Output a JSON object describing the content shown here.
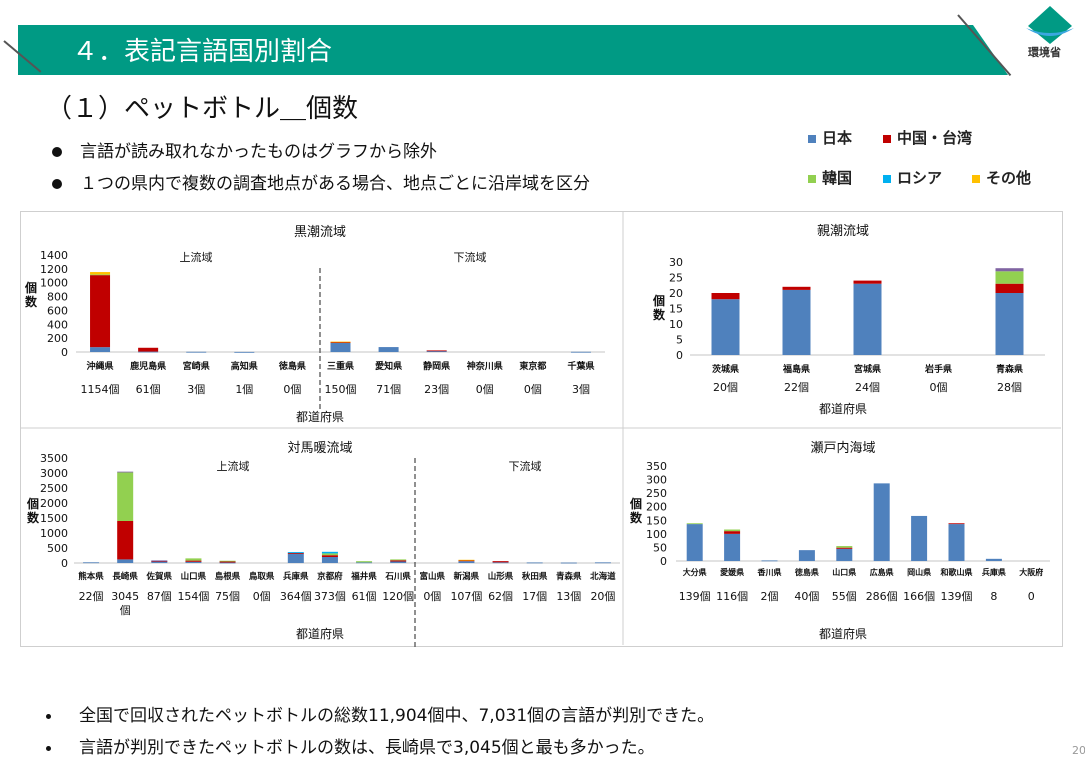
{
  "header": {
    "title": "４．表記言語国別割合",
    "logo_text": "環境省"
  },
  "subtitle": "（１）ペットボトル＿個数",
  "bullets": [
    "言語が読み取れなかったものはグラフから除外",
    "１つの県内で複数の調査地点がある場合、地点ごとに沿岸域を区分"
  ],
  "legend": [
    {
      "key": "japan",
      "label": "日本",
      "color": "#4F81BD"
    },
    {
      "key": "china",
      "label": "中国・台湾",
      "color": "#C00000"
    },
    {
      "key": "korea",
      "label": "韓国",
      "color": "#92D050"
    },
    {
      "key": "russia",
      "label": "ロシア",
      "color": "#00B0F0"
    },
    {
      "key": "other",
      "label": "その他",
      "color": "#FFC000"
    }
  ],
  "extra_color": "#8064A2",
  "chart_data": [
    {
      "type": "bar",
      "title": "黒潮流域",
      "ylabel": "個数",
      "xlabel": "都道府県",
      "ylim": [
        0,
        1400
      ],
      "ytick_step": 200,
      "regions": [
        "上流域",
        "下流域"
      ],
      "categories": [
        "沖縄県",
        "鹿児島県",
        "宮崎県",
        "高知県",
        "徳島県",
        "三重県",
        "愛知県",
        "静岡県",
        "神奈川県",
        "東京都",
        "千葉県"
      ],
      "count_labels": [
        "1154個",
        "61個",
        "3個",
        "1個",
        "0個",
        "150個",
        "71個",
        "23個",
        "0個",
        "0個",
        "3個"
      ],
      "series": {
        "japan": [
          70,
          6,
          3,
          1,
          0,
          130,
          71,
          18,
          0,
          0,
          3
        ],
        "china": [
          1040,
          55,
          0,
          0,
          0,
          15,
          0,
          5,
          0,
          0,
          0
        ],
        "korea": [
          10,
          0,
          0,
          0,
          0,
          0,
          0,
          0,
          0,
          0,
          0
        ],
        "russia": [
          0,
          0,
          0,
          0,
          0,
          0,
          0,
          0,
          0,
          0,
          0
        ],
        "other": [
          34,
          0,
          0,
          0,
          0,
          5,
          0,
          0,
          0,
          0,
          0
        ],
        "extra": [
          0,
          0,
          0,
          0,
          0,
          0,
          0,
          0,
          0,
          0,
          0
        ]
      }
    },
    {
      "type": "bar",
      "title": "親潮流域",
      "ylabel": "個数",
      "xlabel": "都道府県",
      "ylim": [
        0,
        30
      ],
      "ytick_step": 5,
      "categories": [
        "茨城県",
        "福島県",
        "宮城県",
        "岩手県",
        "青森県"
      ],
      "count_labels": [
        "20個",
        "22個",
        "24個",
        "0個",
        "28個"
      ],
      "series": {
        "japan": [
          18,
          21,
          23,
          0,
          20
        ],
        "china": [
          2,
          1,
          1,
          0,
          3
        ],
        "korea": [
          0,
          0,
          0,
          0,
          4
        ],
        "russia": [
          0,
          0,
          0,
          0,
          0
        ],
        "other": [
          0,
          0,
          0,
          0,
          0
        ],
        "extra": [
          0,
          0,
          0,
          0,
          1
        ]
      }
    },
    {
      "type": "bar",
      "title": "対馬暖流域",
      "ylabel": "個数",
      "xlabel": "都道府県",
      "ylim": [
        0,
        3500
      ],
      "ytick_step": 500,
      "regions": [
        "上流域",
        "下流域"
      ],
      "categories": [
        "熊本県",
        "長崎県",
        "佐賀県",
        "山口県",
        "島根県",
        "鳥取県",
        "兵庫県",
        "京都府",
        "福井県",
        "石川県",
        "富山県",
        "新潟県",
        "山形県",
        "秋田県",
        "青森県",
        "北海道"
      ],
      "count_labels": [
        "22個",
        "3045個",
        "87個",
        "154個",
        "75個",
        "0個",
        "364個",
        "373個",
        "61個",
        "120個",
        "0個",
        "107個",
        "62個",
        "17個",
        "13個",
        "20個"
      ],
      "series": {
        "japan": [
          22,
          120,
          60,
          40,
          15,
          0,
          300,
          200,
          21,
          50,
          0,
          60,
          22,
          17,
          13,
          20
        ],
        "china": [
          0,
          1280,
          10,
          40,
          40,
          0,
          30,
          60,
          0,
          40,
          0,
          30,
          40,
          0,
          0,
          0
        ],
        "korea": [
          0,
          1620,
          0,
          74,
          20,
          0,
          0,
          60,
          40,
          30,
          0,
          0,
          0,
          0,
          0,
          0
        ],
        "russia": [
          0,
          0,
          0,
          0,
          0,
          0,
          34,
          53,
          0,
          0,
          0,
          0,
          0,
          0,
          0,
          0
        ],
        "other": [
          0,
          0,
          0,
          0,
          0,
          0,
          0,
          0,
          0,
          0,
          0,
          17,
          0,
          0,
          0,
          0
        ],
        "extra": [
          0,
          25,
          17,
          0,
          0,
          0,
          0,
          0,
          0,
          0,
          0,
          0,
          0,
          0,
          0,
          0
        ]
      }
    },
    {
      "type": "bar",
      "title": "瀬戸内海域",
      "ylabel": "個数",
      "xlabel": "都道府県",
      "ylim": [
        0,
        350
      ],
      "ytick_step": 50,
      "categories": [
        "大分県",
        "愛媛県",
        "香川県",
        "徳島県",
        "山口県",
        "広島県",
        "岡山県",
        "和歌山県",
        "兵庫県",
        "大阪府"
      ],
      "count_labels": [
        "139個",
        "116個",
        "2個",
        "40個",
        "55個",
        "286個",
        "166個",
        "139個",
        "8",
        "0"
      ],
      "series": {
        "japan": [
          136,
          100,
          2,
          40,
          45,
          286,
          166,
          136,
          8,
          0
        ],
        "china": [
          0,
          10,
          0,
          0,
          4,
          0,
          0,
          3,
          0,
          0
        ],
        "korea": [
          3,
          6,
          0,
          0,
          6,
          0,
          0,
          0,
          0,
          0
        ],
        "russia": [
          0,
          0,
          0,
          0,
          0,
          0,
          0,
          0,
          0,
          0
        ],
        "other": [
          0,
          0,
          0,
          0,
          0,
          0,
          0,
          0,
          0,
          0
        ],
        "extra": [
          0,
          0,
          0,
          0,
          0,
          0,
          0,
          0,
          0,
          0
        ]
      }
    }
  ],
  "footnotes": [
    "全国で回収されたペットボトルの総数11,904個中、7,031個の言語が判別できた。",
    "言語が判別できたペットボトルの数は、長崎県で3,045個と最も多かった。"
  ],
  "page_number": "20"
}
